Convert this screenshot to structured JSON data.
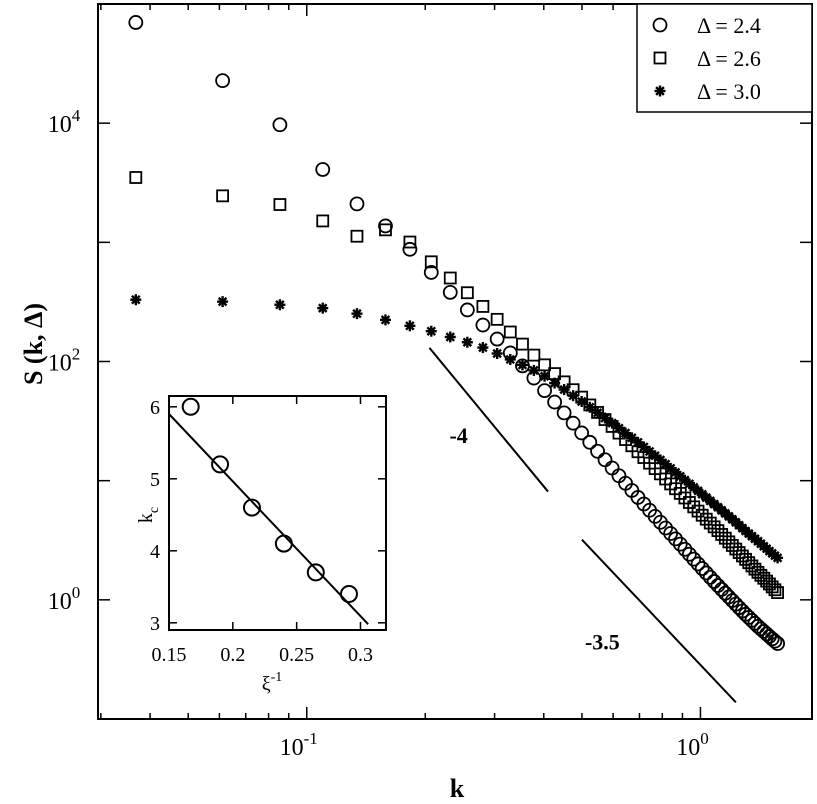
{
  "chart_data": [
    {
      "type": "scatter",
      "xlabel": "k",
      "ylabel": "S (k, Δ)",
      "xscale": "log",
      "yscale": "log",
      "xlim": [
        0.0295,
        1.92
      ],
      "ylim": [
        0.1,
        100000
      ],
      "x_ticks": [
        {
          "value": 0.1,
          "base": "10",
          "exp": "-1"
        },
        {
          "value": 1,
          "base": "10",
          "exp": "0"
        }
      ],
      "y_ticks": [
        {
          "value": 1,
          "base": "10",
          "exp": "0"
        },
        {
          "value": 100,
          "base": "10",
          "exp": "2"
        },
        {
          "value": 10000,
          "base": "10",
          "exp": "4"
        }
      ],
      "legend_position": "top-right",
      "series": [
        {
          "name": "Δ = 2.4",
          "marker": "circle",
          "k_min": 0.0368,
          "k_max": 1.57,
          "count": 64,
          "values_at_k": [
            [
              0.0368,
              70000
            ],
            [
              0.0589,
              25000
            ],
            [
              0.0847,
              10000
            ],
            [
              0.1105,
              4000
            ],
            [
              0.1362,
              2000
            ],
            [
              0.162,
              1300
            ],
            [
              0.1878,
              800
            ],
            [
              0.2136,
              500
            ],
            [
              0.2393,
              340
            ],
            [
              0.2651,
              240
            ],
            [
              0.2909,
              180
            ],
            [
              0.3167,
              135
            ],
            [
              0.3424,
              102
            ],
            [
              0.3682,
              80
            ],
            [
              0.4,
              58
            ],
            [
              0.5,
              25
            ],
            [
              0.6,
              12.5
            ],
            [
              0.7,
              7
            ],
            [
              0.8,
              4.3
            ],
            [
              0.9,
              2.8
            ],
            [
              1.0,
              1.9
            ],
            [
              1.1,
              1.35
            ],
            [
              1.2,
              1.0
            ],
            [
              1.3,
              0.76
            ],
            [
              1.4,
              0.6
            ],
            [
              1.5,
              0.49
            ],
            [
              1.57,
              0.43
            ]
          ]
        },
        {
          "name": "Δ = 2.6",
          "marker": "square",
          "k_min": 0.0368,
          "k_max": 1.57,
          "count": 64,
          "values_at_k": [
            [
              0.0368,
              3500
            ],
            [
              0.0589,
              2500
            ],
            [
              0.0847,
              2100
            ],
            [
              0.1105,
              1500
            ],
            [
              0.1362,
              1100
            ],
            [
              0.162,
              1300
            ],
            [
              0.1878,
              950
            ],
            [
              0.2136,
              620
            ],
            [
              0.2393,
              460
            ],
            [
              0.2651,
              340
            ],
            [
              0.2909,
              260
            ],
            [
              0.3167,
              200
            ],
            [
              0.3424,
              155
            ],
            [
              0.3682,
              122
            ],
            [
              0.4,
              95
            ],
            [
              0.5,
              50
            ],
            [
              0.6,
              28
            ],
            [
              0.7,
              17
            ],
            [
              0.8,
              11
            ],
            [
              0.9,
              7.5
            ],
            [
              1.0,
              5.3
            ],
            [
              1.1,
              3.9
            ],
            [
              1.2,
              2.9
            ],
            [
              1.3,
              2.2
            ],
            [
              1.4,
              1.7
            ],
            [
              1.5,
              1.35
            ],
            [
              1.57,
              1.15
            ]
          ]
        },
        {
          "name": "Δ = 3.0",
          "marker": "star",
          "k_min": 0.0368,
          "k_max": 1.57,
          "count": 64,
          "values_at_k": [
            [
              0.0368,
              330
            ],
            [
              0.0589,
              320
            ],
            [
              0.0847,
              300
            ],
            [
              0.1105,
              280
            ],
            [
              0.1362,
              250
            ],
            [
              0.162,
              220
            ],
            [
              0.1878,
              195
            ],
            [
              0.2136,
              175
            ],
            [
              0.2393,
              155
            ],
            [
              0.2651,
              140
            ],
            [
              0.2909,
              125
            ],
            [
              0.3167,
              110
            ],
            [
              0.3424,
              98
            ],
            [
              0.3682,
              88
            ],
            [
              0.4,
              76
            ],
            [
              0.5,
              46
            ],
            [
              0.6,
              30
            ],
            [
              0.7,
              20.5
            ],
            [
              0.8,
              14.5
            ],
            [
              0.9,
              10.5
            ],
            [
              1.0,
              7.9
            ],
            [
              1.1,
              6.1
            ],
            [
              1.2,
              4.8
            ],
            [
              1.3,
              3.8
            ],
            [
              1.4,
              3.1
            ],
            [
              1.5,
              2.55
            ],
            [
              1.57,
              2.25
            ]
          ]
        }
      ],
      "reference_lines": [
        {
          "label": "-4",
          "k_start": 0.205,
          "k_end": 0.41,
          "y_start": 130,
          "y_end": 8.1
        },
        {
          "label": "-3.5",
          "k_start": 0.5,
          "k_end": 1.23,
          "y_start": 3.2,
          "y_end": 0.138
        }
      ]
    },
    {
      "type": "scatter",
      "role": "inset",
      "xlabel": "ξ",
      "xlabel_sup": "-1",
      "ylabel": "k",
      "ylabel_sub": "c",
      "xlim": [
        0.15,
        0.32
      ],
      "ylim": [
        2.9,
        6.15
      ],
      "x_ticks": [
        0.15,
        0.2,
        0.25,
        0.3
      ],
      "x_tick_labels": [
        "0.15",
        "0.2",
        "0.25",
        "0.3"
      ],
      "y_ticks": [
        3,
        4,
        5,
        6
      ],
      "y_tick_labels": [
        "3",
        "4",
        "5",
        "6"
      ],
      "points": [
        [
          0.167,
          6.0
        ],
        [
          0.19,
          5.2
        ],
        [
          0.215,
          4.6
        ],
        [
          0.24,
          4.1
        ],
        [
          0.265,
          3.7
        ],
        [
          0.291,
          3.4
        ]
      ],
      "fit_line": [
        [
          0.15,
          5.9
        ],
        [
          0.306,
          2.98
        ]
      ]
    }
  ]
}
